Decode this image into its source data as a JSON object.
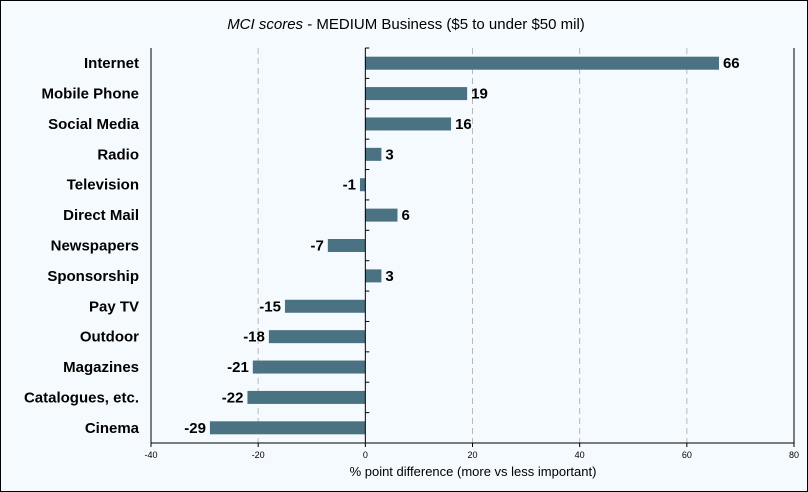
{
  "chart_data": {
    "type": "bar",
    "orientation": "horizontal",
    "title_italic": "MCI scores",
    "title_rest": " - MEDIUM Business ($5 to under $50 mil)",
    "xlabel": "% point difference (more vs less important)",
    "ylabel": "",
    "xlim": [
      -40,
      80
    ],
    "xticks": [
      "-40",
      "-20",
      "0",
      "20",
      "40",
      "60",
      "80"
    ],
    "grid": "vertical-dashed",
    "bar_color": "#4a7282",
    "categories": [
      "Internet",
      "Mobile Phone",
      "Social Media",
      "Radio",
      "Television",
      "Direct Mail",
      "Newspapers",
      "Sponsorship",
      "Pay TV",
      "Outdoor",
      "Magazines",
      "Catalogues, etc.",
      "Cinema"
    ],
    "values": [
      66,
      19,
      16,
      3,
      -1,
      6,
      -7,
      3,
      -15,
      -18,
      -21,
      -22,
      -29
    ],
    "value_labels": [
      "66",
      "19",
      "16",
      "3",
      "-1",
      "6",
      "-7",
      "3",
      "-15",
      "-18",
      "-21",
      "-22",
      "-29"
    ]
  }
}
